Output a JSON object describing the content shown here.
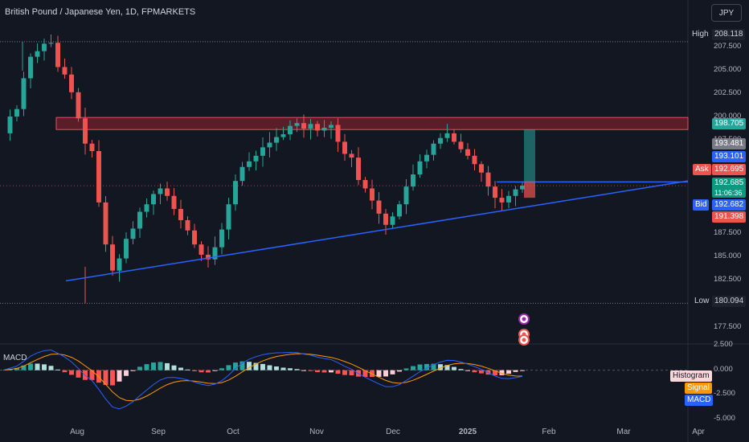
{
  "header": {
    "symbol_title": "British Pound / Japanese Yen, 1D, FPMARKETS",
    "currency_button": "JPY"
  },
  "indicator": {
    "name": "MACD"
  },
  "price_axis": {
    "ticks": [
      "207.500",
      "205.000",
      "202.500",
      "200.000",
      "197.500",
      "187.500",
      "185.000",
      "182.500",
      "177.500"
    ],
    "tick_values": [
      207.5,
      205,
      202.5,
      200,
      197.5,
      187.5,
      185,
      182.5,
      177.5
    ]
  },
  "macd_axis": {
    "ticks": [
      "2.500",
      "0.000",
      "-2.500",
      "-5.000"
    ],
    "tick_values": [
      2.5,
      0,
      -2.5,
      -5
    ]
  },
  "time_axis": {
    "labels": [
      "Aug",
      "Sep",
      "Oct",
      "Nov",
      "Dec",
      "2025",
      "Feb",
      "Mar",
      "Apr"
    ]
  },
  "price_tags": {
    "high_label": "High",
    "high_value": "208.118",
    "low_label": "Low",
    "low_value": "180.094",
    "target_value": "198.705",
    "grey_value": "193.481",
    "blue_value": "193.101",
    "ask_label": "Ask",
    "ask_value": "192.695",
    "last_value": "192.685",
    "countdown": "11:06:36",
    "bid_label": "Bid",
    "bid_value": "192.682",
    "stop_value": "191.398"
  },
  "macd_legend": {
    "histogram": "Histogram",
    "signal": "Signal",
    "macd": "MACD"
  },
  "colors": {
    "background": "#131722",
    "bull": "#26a69a",
    "bear": "#ef5350",
    "trendline": "#2962ff",
    "resistance_zone": "#b22833",
    "signal_line": "#ff9800",
    "macd_line": "#2962ff"
  },
  "icons": [
    "trading-idea-icon",
    "replay-icon",
    "alert-icon"
  ],
  "chart_data": {
    "type": "candlestick",
    "ohlc_walk": [
      198.3,
      200.1,
      200.9,
      204.2,
      206.5,
      207.1,
      207.9,
      208.0,
      205.4,
      204.6,
      202.7,
      199.9,
      197.2,
      196.4,
      190.9,
      186.4,
      183.6,
      184.9,
      187.0,
      188.1,
      189.9,
      190.7,
      191.8,
      192.4,
      191.6,
      190.2,
      189.0,
      187.9,
      186.4,
      185.3,
      184.8,
      186.1,
      188.0,
      190.7,
      193.2,
      194.7,
      195.3,
      195.9,
      196.8,
      197.3,
      197.9,
      198.2,
      199.1,
      199.4,
      198.8,
      199.3,
      198.6,
      198.9,
      199.2,
      197.4,
      196.1,
      195.7,
      193.3,
      192.4,
      191.1,
      189.7,
      188.5,
      189.4,
      190.7,
      192.6,
      193.9,
      195.3,
      196.0,
      197.2,
      197.8,
      198.3,
      197.4,
      196.6,
      195.9,
      195.0,
      194.1,
      192.6,
      191.4,
      190.9,
      191.6,
      192.3,
      192.7
    ],
    "high": 208.118,
    "low": 180.094,
    "ask": 192.695,
    "bid": 192.682,
    "last": 192.685,
    "ylim": [
      176,
      210
    ],
    "macd_ylim": [
      -5,
      2.5
    ],
    "x_labels": [
      "Aug",
      "Sep",
      "Oct",
      "Nov",
      "Dec",
      "2025",
      "Feb",
      "Mar",
      "Apr"
    ],
    "resistance_zone": [
      198.705,
      200.0
    ],
    "trendline": {
      "from": 182.5,
      "to": 193.2
    },
    "position": {
      "entry": 193.101,
      "target": 198.705,
      "stop": 191.398
    },
    "macd_series": [
      {
        "name": "Histogram"
      },
      {
        "name": "Signal"
      },
      {
        "name": "MACD"
      }
    ]
  }
}
